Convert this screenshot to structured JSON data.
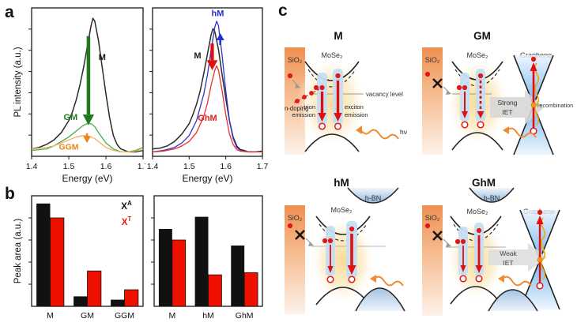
{
  "panel_letters": {
    "a": "a",
    "b": "b",
    "c": "c"
  },
  "legend": {
    "exciton_base": "X",
    "exciton_sup": "A",
    "exciton_color": "#111111",
    "trion_base": "X",
    "trion_sup": "T",
    "trion_color": "#e8190f"
  },
  "chart_data": [
    {
      "id": "pl-left",
      "type": "line",
      "title": "",
      "xlabel": "Energy (eV)",
      "ylabel": "PL intensity (a.u.)",
      "xlim": [
        1.4,
        1.7
      ],
      "ylim": [
        0,
        1
      ],
      "x_ticks": [
        1.4,
        1.5,
        1.6,
        1.7
      ],
      "y_ticks": 6,
      "margin": {
        "t": 8,
        "r": 3,
        "b": 44,
        "l": 24
      },
      "series": [
        {
          "name": "M",
          "color": "#2b2b2b",
          "width": 1.5,
          "x": [
            1.4,
            1.42,
            1.44,
            1.46,
            1.48,
            1.5,
            1.51,
            1.52,
            1.53,
            1.54,
            1.55,
            1.56,
            1.565,
            1.57,
            1.58,
            1.59,
            1.6,
            1.61,
            1.62,
            1.63,
            1.64,
            1.65,
            1.66,
            1.68,
            1.7
          ],
          "y": [
            0.05,
            0.06,
            0.08,
            0.11,
            0.16,
            0.24,
            0.3,
            0.38,
            0.48,
            0.6,
            0.74,
            0.88,
            0.93,
            0.91,
            0.78,
            0.6,
            0.42,
            0.26,
            0.14,
            0.08,
            0.05,
            0.04,
            0.03,
            0.03,
            0.04
          ]
        },
        {
          "name": "GM",
          "color": "#3cb43c",
          "width": 1.3,
          "x": [
            1.4,
            1.44,
            1.46,
            1.48,
            1.5,
            1.52,
            1.54,
            1.55,
            1.56,
            1.57,
            1.58,
            1.6,
            1.62,
            1.64,
            1.66,
            1.68,
            1.7
          ],
          "y": [
            0.04,
            0.05,
            0.07,
            0.1,
            0.13,
            0.17,
            0.21,
            0.22,
            0.22,
            0.2,
            0.16,
            0.09,
            0.05,
            0.03,
            0.03,
            0.04,
            0.06
          ]
        },
        {
          "name": "GGM",
          "color": "#f9ad60",
          "width": 1.3,
          "x": [
            1.4,
            1.44,
            1.46,
            1.48,
            1.5,
            1.52,
            1.54,
            1.55,
            1.56,
            1.57,
            1.58,
            1.6,
            1.62,
            1.64,
            1.66,
            1.68,
            1.7
          ],
          "y": [
            0.05,
            0.06,
            0.07,
            0.09,
            0.11,
            0.13,
            0.14,
            0.14,
            0.13,
            0.12,
            0.1,
            0.06,
            0.04,
            0.03,
            0.03,
            0.035,
            0.045
          ]
        }
      ],
      "annotations": [
        {
          "kind": "label",
          "text": "M",
          "x": 1.59,
          "y": 0.65,
          "color": "#1a1a1a",
          "size": 11
        },
        {
          "kind": "label",
          "text": "GM",
          "x": 1.505,
          "y": 0.245,
          "color": "#1e7d1e",
          "size": 11
        },
        {
          "kind": "label",
          "text": "GGM",
          "x": 1.5,
          "y": 0.045,
          "color": "#f08019",
          "size": 10.5
        },
        {
          "kind": "arrow",
          "x": 1.553,
          "y1": 0.81,
          "y2": 0.21,
          "color": "#1e7a1e",
          "w": 4.5
        },
        {
          "kind": "arrow",
          "x": 1.549,
          "y1": 0.155,
          "y2": 0.09,
          "color": "#f08019",
          "w": 2.4
        }
      ]
    },
    {
      "id": "pl-right",
      "type": "line",
      "title": "",
      "xlabel": "Energy (eV)",
      "ylabel": "",
      "xlim": [
        1.4,
        1.7
      ],
      "ylim": [
        0,
        1
      ],
      "x_ticks": [
        1.4,
        1.5,
        1.6,
        1.7
      ],
      "y_ticks": 6,
      "margin": {
        "t": 8,
        "r": 8,
        "b": 44,
        "l": 7
      },
      "series": [
        {
          "name": "M",
          "color": "#2b2b2b",
          "width": 1.5,
          "x": [
            1.4,
            1.42,
            1.44,
            1.46,
            1.48,
            1.5,
            1.51,
            1.52,
            1.53,
            1.54,
            1.55,
            1.56,
            1.565,
            1.57,
            1.58,
            1.59,
            1.6,
            1.61,
            1.62,
            1.63,
            1.64,
            1.65,
            1.66,
            1.68,
            1.7
          ],
          "y": [
            0.05,
            0.055,
            0.07,
            0.1,
            0.15,
            0.22,
            0.28,
            0.35,
            0.44,
            0.56,
            0.69,
            0.82,
            0.86,
            0.84,
            0.72,
            0.55,
            0.39,
            0.24,
            0.13,
            0.07,
            0.045,
            0.04,
            0.03,
            0.03,
            0.035
          ]
        },
        {
          "name": "hM",
          "color": "#3333cc",
          "width": 1.3,
          "x": [
            1.4,
            1.43,
            1.46,
            1.48,
            1.5,
            1.52,
            1.54,
            1.55,
            1.56,
            1.57,
            1.575,
            1.58,
            1.59,
            1.6,
            1.61,
            1.62,
            1.63,
            1.64,
            1.66,
            1.68,
            1.7
          ],
          "y": [
            0.03,
            0.04,
            0.06,
            0.09,
            0.14,
            0.24,
            0.42,
            0.55,
            0.72,
            0.87,
            0.91,
            0.88,
            0.68,
            0.44,
            0.24,
            0.12,
            0.06,
            0.04,
            0.03,
            0.03,
            0.03
          ]
        },
        {
          "name": "GhM",
          "color": "#e83030",
          "width": 1.3,
          "x": [
            1.4,
            1.43,
            1.46,
            1.48,
            1.5,
            1.52,
            1.54,
            1.55,
            1.56,
            1.57,
            1.575,
            1.58,
            1.59,
            1.6,
            1.61,
            1.62,
            1.63,
            1.64,
            1.66,
            1.68,
            1.7
          ],
          "y": [
            0.03,
            0.035,
            0.05,
            0.07,
            0.1,
            0.16,
            0.27,
            0.36,
            0.48,
            0.58,
            0.61,
            0.58,
            0.44,
            0.28,
            0.15,
            0.08,
            0.045,
            0.035,
            0.03,
            0.03,
            0.03
          ]
        }
      ],
      "annotations": [
        {
          "kind": "label",
          "text": "hM",
          "x": 1.578,
          "y": 0.945,
          "color": "#2230d8",
          "size": 11
        },
        {
          "kind": "label",
          "text": "M",
          "x": 1.523,
          "y": 0.66,
          "color": "#1a1a1a",
          "size": 11
        },
        {
          "kind": "label",
          "text": "GhM",
          "x": 1.55,
          "y": 0.24,
          "color": "#e02020",
          "size": 11
        },
        {
          "kind": "arrow",
          "x": 1.563,
          "y1": 0.76,
          "y2": 0.58,
          "color": "#e01010",
          "w": 4.2
        },
        {
          "kind": "arrow",
          "x": 1.585,
          "y1": 0.75,
          "y2": 0.83,
          "color": "#2230d8",
          "w": 2.6
        }
      ]
    },
    {
      "id": "bar-left",
      "type": "bar",
      "title": "",
      "xlabel": "",
      "ylabel": "Peak area (a.u.)",
      "categories": [
        "M",
        "GM",
        "GGM"
      ],
      "ylim": [
        0,
        1
      ],
      "y_ticks": 4,
      "margin": {
        "t": 8,
        "r": 3,
        "b": 28,
        "l": 24
      },
      "series": [
        {
          "name": "XA",
          "color": "#111111",
          "values": [
            0.93,
            0.09,
            0.06
          ]
        },
        {
          "name": "XT",
          "color": "#ee1100",
          "values": [
            0.8,
            0.32,
            0.15
          ]
        }
      ]
    },
    {
      "id": "bar-right",
      "type": "bar",
      "title": "",
      "xlabel": "",
      "ylabel": "",
      "categories": [
        "M",
        "hM",
        "GhM"
      ],
      "ylim": [
        0,
        1
      ],
      "y_ticks": 4,
      "margin": {
        "t": 8,
        "r": 4,
        "b": 28,
        "l": 7
      },
      "series": [
        {
          "name": "XA",
          "color": "#111111",
          "values": [
            0.7,
            0.81,
            0.55
          ]
        },
        {
          "name": "XT",
          "color": "#ee1100",
          "values": [
            0.6,
            0.285,
            0.305
          ]
        }
      ]
    }
  ],
  "diagrams": {
    "m": {
      "title": "M",
      "substrate": "SiO₂",
      "material": "MoSe₂",
      "n_doping": "n-doping",
      "vacancy": "vacancy level",
      "trion_line1": "trion",
      "trion_line2": "emission",
      "exciton_line1": "exciton",
      "exciton_line2": "emission",
      "photon": "hν"
    },
    "gm": {
      "title": "GM",
      "substrate": "SiO₂",
      "material": "MoSe₂",
      "graphene": "Graphene",
      "iet_line1": "Strong",
      "iet_line2": "IET",
      "recombination": "recombination"
    },
    "hm": {
      "title": "hM",
      "substrate": "SiO₂",
      "material": "MoSe₂",
      "hbn": "h-BN"
    },
    "ghm": {
      "title": "GhM",
      "substrate": "SiO₂",
      "material": "MoSe₂",
      "hbn": "h-BN",
      "graphene": "Graphene",
      "iet_line1": "Weak",
      "iet_line2": "IET"
    }
  }
}
